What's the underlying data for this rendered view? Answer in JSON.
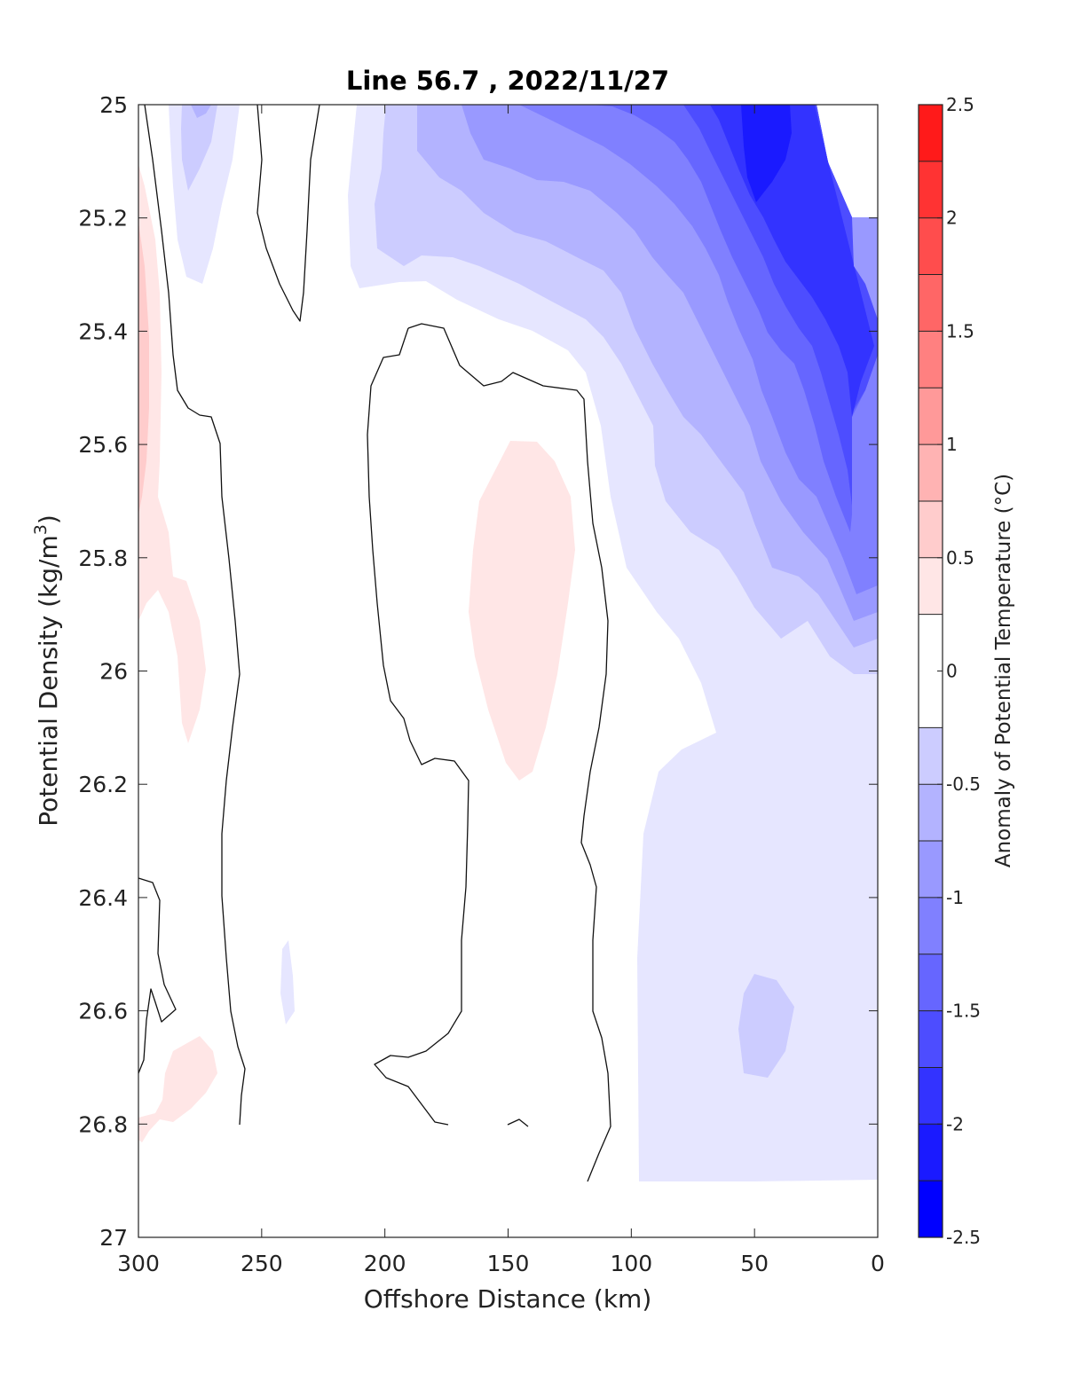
{
  "chart_data": {
    "type": "heatmap",
    "subtype": "filled-contour",
    "title": "Line 56.7 , 2022/11/27",
    "xlabel": "Offshore Distance (km)",
    "ylabel_text": "Potential Density (kg/m",
    "ylabel_superscript": "3",
    "ylabel_close": ")",
    "colorbar_label": "Anomaly of Potential Temperature (°C)",
    "xlim": [
      300,
      0
    ],
    "x_reversed": true,
    "ylim": [
      25,
      27
    ],
    "y_reversed": true,
    "x_ticks": [
      300,
      250,
      200,
      150,
      100,
      50,
      0
    ],
    "x_tick_labels": [
      "300",
      "250",
      "200",
      "150",
      "100",
      "50",
      "0"
    ],
    "y_ticks": [
      25,
      25.2,
      25.4,
      25.6,
      25.8,
      26,
      26.2,
      26.4,
      26.6,
      26.8,
      27
    ],
    "y_tick_labels": [
      "25",
      "25.2",
      "25.4",
      "25.6",
      "25.8",
      "26",
      "26.2",
      "26.4",
      "26.6",
      "26.8",
      "27"
    ],
    "colorbar_range": [
      -2.5,
      2.5
    ],
    "colorbar_ticks": [
      -2.5,
      -2,
      -1.5,
      -1,
      -0.5,
      0,
      0.5,
      1,
      1.5,
      2,
      2.5
    ],
    "colorbar_tick_labels": [
      "-2.5",
      "-2",
      "-1.5",
      "-1",
      "-0.5",
      "0",
      "0.5",
      "1",
      "1.5",
      "2",
      "2.5"
    ],
    "contour_levels": [
      -2.5,
      -2.25,
      -2,
      -1.75,
      -1.5,
      -1.25,
      -1,
      -0.75,
      -0.5,
      -0.25,
      0.25,
      0.5,
      0.75,
      1,
      1.25,
      1.5,
      1.75,
      2,
      2.25,
      2.5
    ],
    "zero_contour_shown": true,
    "colormap": {
      "negative_end": "#0000ff",
      "zero": "#ffffff",
      "positive_end": "#ff0000"
    },
    "fill_colors": {
      "band_-2.5": "#0000ff",
      "band_-2.25": "#1a1aff",
      "band_-2": "#3333ff",
      "band_-1.75": "#4d4dff",
      "band_-1.5": "#6666ff",
      "band_-1.25": "#8080ff",
      "band_-1": "#9999ff",
      "band_-0.75": "#b3b3ff",
      "band_-0.5": "#ccccff",
      "band_-0.25": "#e6e6ff",
      "band_0": "#ffffff",
      "band_0.25": "#ffe6e6",
      "band_0.5": "#ffcccc",
      "band_0.75": "#ffb3b3",
      "band_1": "#ff9999",
      "band_1.25": "#ff8080",
      "band_1.5": "#ff6666",
      "band_1.75": "#ff4d4d",
      "band_2": "#ff3333",
      "band_2.25": "#ff1a1a"
    }
  }
}
